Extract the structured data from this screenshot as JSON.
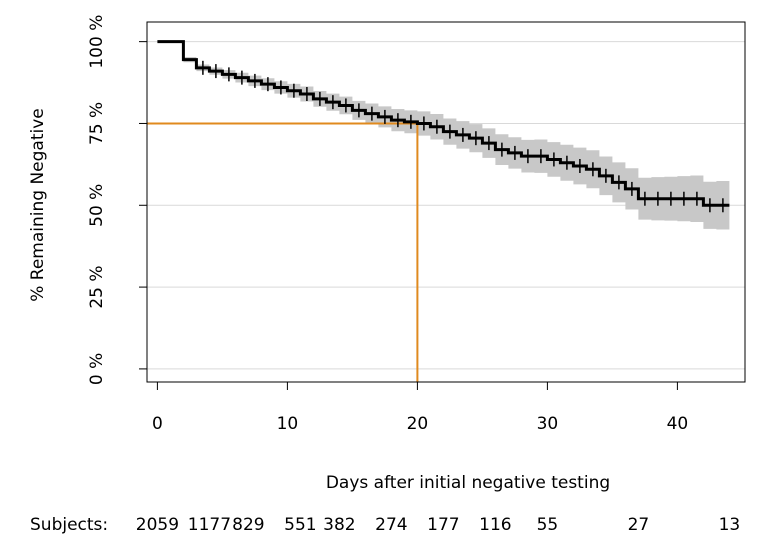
{
  "chart_data": {
    "type": "survival",
    "ylabel": "% Remaining Negative",
    "xlabel": "Days after initial negative testing",
    "x": [
      0,
      1,
      2,
      3,
      4,
      5,
      6,
      7,
      8,
      9,
      10,
      11,
      12,
      13,
      14,
      15,
      16,
      17,
      18,
      19,
      20,
      21,
      22,
      23,
      24,
      25,
      26,
      27,
      28,
      29,
      30,
      31,
      32,
      33,
      34,
      35,
      36,
      37,
      38,
      39,
      40,
      41,
      42,
      43,
      44
    ],
    "values": [
      100,
      100,
      94.5,
      92,
      91,
      90,
      89,
      88,
      87,
      86,
      85,
      84,
      82.5,
      81.5,
      80.5,
      79,
      78,
      77,
      76,
      75.5,
      75,
      74,
      72.5,
      71.5,
      70.5,
      69,
      67,
      66,
      65,
      65,
      64,
      63,
      62,
      61,
      59,
      57,
      55,
      52,
      52,
      52,
      52,
      52,
      50,
      50,
      50
    ],
    "upper": [
      100,
      100,
      95.3,
      93,
      92.1,
      91.3,
      90.5,
      89.6,
      88.8,
      87.9,
      87.1,
      86.3,
      84.9,
      84.1,
      83.2,
      81.9,
      81.1,
      80.2,
      79.4,
      79,
      78.7,
      77.9,
      76.5,
      75.7,
      74.8,
      73.5,
      71.7,
      70.8,
      70,
      70.1,
      69.3,
      68.5,
      67.6,
      66.8,
      64.9,
      63.1,
      61.3,
      58.4,
      58.6,
      58.7,
      58.9,
      59.1,
      57.2,
      57.4,
      57.5
    ],
    "lower": [
      100,
      100,
      93.7,
      91,
      89.9,
      88.7,
      87.5,
      86.4,
      85.2,
      84.1,
      82.9,
      81.7,
      80.1,
      78.9,
      77.8,
      76.1,
      74.9,
      73.8,
      72.6,
      72,
      71.3,
      70.1,
      68.5,
      67.3,
      66.2,
      64.5,
      62.3,
      61.2,
      60,
      59.9,
      58.7,
      57.5,
      56.4,
      55.2,
      53.1,
      50.9,
      48.7,
      45.6,
      45.4,
      45.3,
      45.1,
      44.9,
      42.8,
      42.6,
      42.5
    ],
    "censor_x": [
      3.5,
      4.5,
      5.5,
      6.5,
      7.5,
      8.5,
      9.5,
      10.5,
      11.5,
      12.5,
      13.5,
      14.5,
      15.5,
      16.5,
      17.5,
      18.5,
      19.5,
      20.5,
      21.5,
      22.5,
      23.5,
      24.5,
      25.5,
      26.5,
      27.5,
      28.5,
      29.5,
      30.5,
      31.5,
      32.5,
      33.5,
      34.5,
      35.5,
      36.5,
      37.5,
      38.5,
      39.5,
      40.5,
      41.5,
      42.5,
      43.5
    ],
    "color": "#000000",
    "band_color": "#c8c8c8",
    "reference": {
      "x": 20,
      "y": 75,
      "color": "#e08a1e"
    },
    "xlim": [
      -0.8,
      45.2
    ],
    "ylim": [
      -4,
      106
    ],
    "xticks": [
      0,
      10,
      20,
      30,
      40
    ],
    "yticks": [
      {
        "value": 0,
        "label": "0 %"
      },
      {
        "value": 25,
        "label": "25 %"
      },
      {
        "value": 50,
        "label": "50 %"
      },
      {
        "value": 75,
        "label": "75 %"
      },
      {
        "value": 100,
        "label": "100 %"
      }
    ],
    "grid": true,
    "risk_label": "Subjects:",
    "risk_x": [
      0,
      4,
      7,
      11,
      14,
      18,
      22,
      26,
      30,
      37,
      44
    ],
    "risk_values": [
      2059,
      1177,
      829,
      551,
      382,
      274,
      177,
      116,
      55,
      27,
      13
    ]
  }
}
